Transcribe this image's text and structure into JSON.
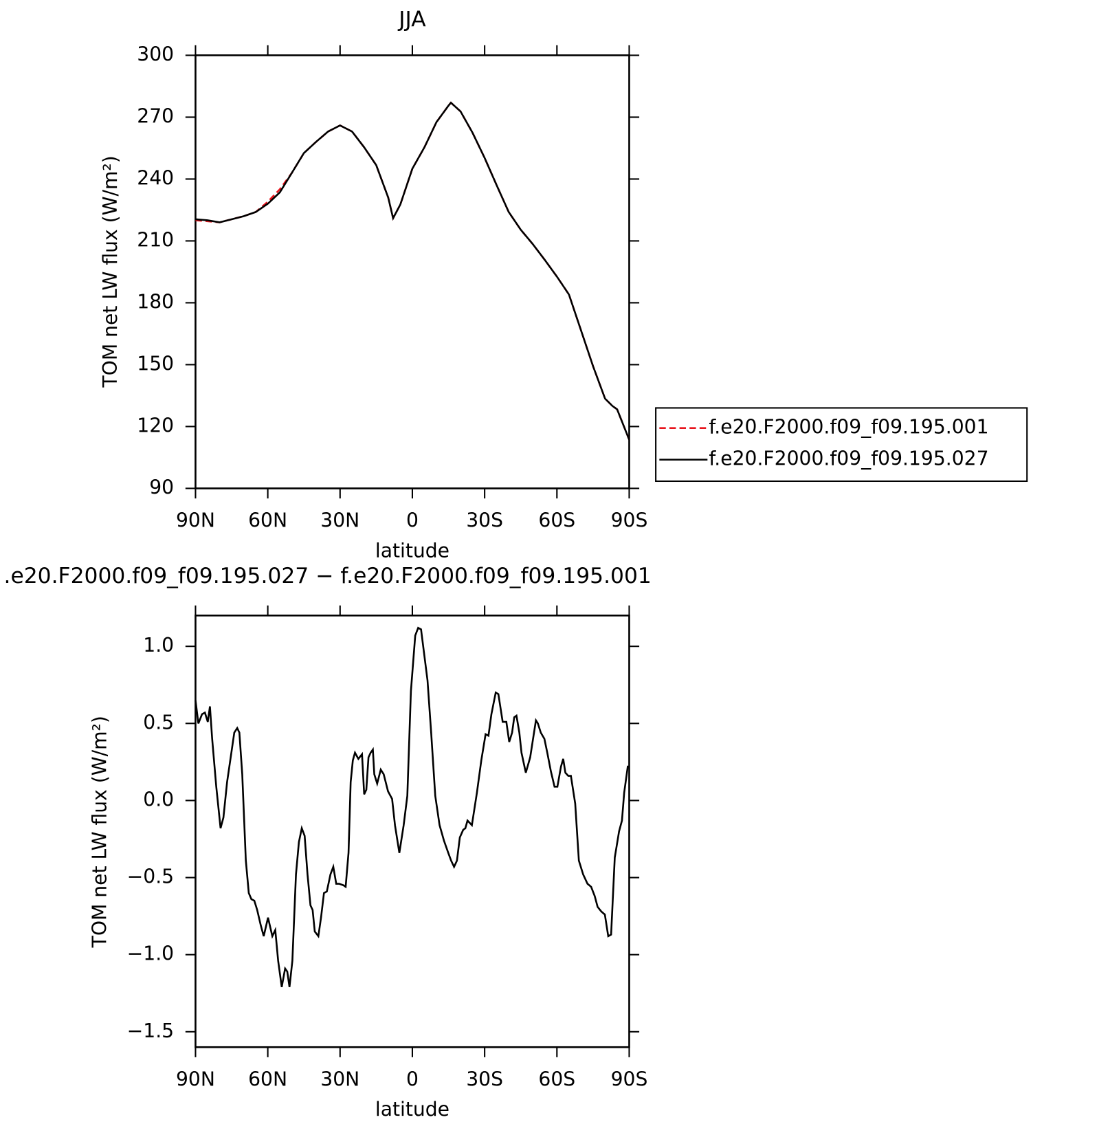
{
  "chart_data": [
    {
      "type": "line",
      "title": "JJA",
      "x_label": "latitude",
      "y_label": "TOM net LW flux (W/m²)",
      "x": [
        90,
        85,
        80,
        75,
        70,
        65,
        60,
        55,
        50,
        45,
        40,
        35,
        30,
        25,
        20,
        15,
        10,
        8,
        5,
        0,
        -5,
        -10,
        -15,
        -16,
        -20,
        -25,
        -30,
        -35,
        -40,
        -45,
        -50,
        -55,
        -60,
        -65,
        -70,
        -75,
        -80,
        -83,
        -85,
        -90
      ],
      "series": [
        {
          "name": "f.e20.F2000.f09_f09.195.001",
          "color": "#e8141c",
          "dashed": true,
          "values": [
            220,
            219.5,
            219,
            220.5,
            222,
            224,
            229,
            235,
            243,
            252.6,
            258,
            263,
            266,
            263,
            255.4,
            246.7,
            231,
            221,
            227.6,
            245,
            255.4,
            267.6,
            275.6,
            277,
            272.8,
            262.4,
            250.2,
            237,
            224,
            215.4,
            208.4,
            200.7,
            192.7,
            184,
            166.6,
            149.2,
            133.5,
            130,
            128.3,
            113.6
          ]
        },
        {
          "name": "f.e20.F2000.f09_f09.195.027",
          "color": "#000000",
          "dashed": false,
          "values": [
            220.5,
            220,
            219,
            220.5,
            222,
            224,
            228,
            233.5,
            243,
            252.6,
            258,
            263,
            266,
            263,
            255.4,
            246.7,
            231,
            221,
            227.6,
            245,
            255.4,
            267.6,
            275.6,
            277,
            272.8,
            262.4,
            250.2,
            237,
            224,
            215.4,
            208.4,
            200.7,
            192.7,
            184,
            166.6,
            149.2,
            133.5,
            130,
            128.3,
            113.6
          ]
        }
      ],
      "xlim": [
        90,
        -90
      ],
      "xticks": [
        {
          "value": 90,
          "label": "90N"
        },
        {
          "value": 60,
          "label": "60N"
        },
        {
          "value": 30,
          "label": "30N"
        },
        0,
        {
          "value": -30,
          "label": "30S"
        },
        {
          "value": -60,
          "label": "60S"
        },
        {
          "value": -90,
          "label": "90S"
        }
      ],
      "ylim": [
        90,
        300
      ],
      "yticks": [
        90,
        120,
        150,
        180,
        210,
        240,
        270,
        300
      ],
      "legend": "right"
    },
    {
      "type": "line",
      "title": ".e20.F2000.f09_f09.195.027 − f.e20.F2000.f09_f09.195.001",
      "x_label": "latitude",
      "y_label": "TOM net LW flux (W/m²)",
      "x": [
        90,
        88.8,
        87.3,
        86.1,
        84.9,
        84.0,
        83.1,
        81.4,
        79.6,
        78.4,
        76.9,
        75.4,
        73.9,
        72.7,
        71.8,
        70.6,
        69.1,
        67.9,
        66.8,
        65.6,
        64.4,
        62.9,
        61.7,
        59.9,
        58.1,
        56.9,
        55.7,
        54.2,
        52.8,
        51.9,
        51.0,
        49.8,
        48.3,
        47.1,
        45.9,
        44.7,
        43.5,
        42.3,
        41.4,
        40.5,
        39.0,
        37.9,
        36.7,
        35.5,
        34.0,
        32.8,
        31.6,
        30.4,
        28.6,
        27.7,
        26.5,
        25.6,
        24.7,
        23.8,
        22.4,
        20.9,
        20.0,
        19.1,
        18.2,
        17.3,
        16.4,
        15.8,
        14.6,
        13.1,
        11.9,
        10.1,
        8.4,
        7.2,
        5.4,
        3.6,
        2.1,
        0.6,
        -1.2,
        -2.4,
        -3.6,
        -4.5,
        -6.3,
        -7.8,
        -9.5,
        -11.3,
        -13.1,
        -14.9,
        -16.1,
        -17.3,
        -18.5,
        -19.7,
        -21.1,
        -22.0,
        -22.9,
        -24.7,
        -26.8,
        -28.6,
        -30.4,
        -31.6,
        -32.8,
        -34.6,
        -35.7,
        -37.5,
        -39.0,
        -40.2,
        -41.4,
        -42.3,
        -43.2,
        -44.4,
        -45.3,
        -47.1,
        -48.9,
        -50.1,
        -51.3,
        -52.1,
        -53.3,
        -54.8,
        -56.0,
        -57.5,
        -59.0,
        -60.2,
        -61.7,
        -62.6,
        -63.5,
        -64.7,
        -65.8,
        -67.6,
        -69.1,
        -70.9,
        -72.7,
        -74.2,
        -75.7,
        -76.9,
        -78.4,
        -79.9,
        -81.3,
        -82.5,
        -84.0,
        -85.8,
        -87.0,
        -87.9,
        -89.4,
        -90
      ],
      "values": [
        0.65,
        0.5,
        0.56,
        0.57,
        0.51,
        0.61,
        0.4,
        0.09,
        -0.18,
        -0.11,
        0.12,
        0.28,
        0.44,
        0.47,
        0.44,
        0.17,
        -0.39,
        -0.6,
        -0.64,
        -0.65,
        -0.71,
        -0.81,
        -0.88,
        -0.76,
        -0.88,
        -0.84,
        -1.04,
        -1.21,
        -1.09,
        -1.11,
        -1.21,
        -1.04,
        -0.48,
        -0.27,
        -0.18,
        -0.23,
        -0.48,
        -0.68,
        -0.71,
        -0.85,
        -0.88,
        -0.76,
        -0.6,
        -0.59,
        -0.48,
        -0.43,
        -0.54,
        -0.54,
        -0.55,
        -0.56,
        -0.34,
        0.12,
        0.26,
        0.31,
        0.27,
        0.3,
        0.04,
        0.07,
        0.28,
        0.31,
        0.33,
        0.17,
        0.11,
        0.2,
        0.17,
        0.06,
        0.01,
        -0.16,
        -0.34,
        -0.16,
        0.03,
        0.71,
        1.07,
        1.12,
        1.11,
        1.0,
        0.78,
        0.44,
        0.03,
        -0.16,
        -0.26,
        -0.34,
        -0.39,
        -0.43,
        -0.39,
        -0.24,
        -0.19,
        -0.18,
        -0.13,
        -0.16,
        0.05,
        0.26,
        0.43,
        0.42,
        0.56,
        0.7,
        0.69,
        0.51,
        0.51,
        0.38,
        0.44,
        0.54,
        0.55,
        0.44,
        0.31,
        0.18,
        0.28,
        0.4,
        0.52,
        0.5,
        0.44,
        0.4,
        0.31,
        0.19,
        0.09,
        0.09,
        0.22,
        0.27,
        0.18,
        0.16,
        0.16,
        -0.02,
        -0.39,
        -0.48,
        -0.54,
        -0.56,
        -0.62,
        -0.69,
        -0.72,
        -0.74,
        -0.88,
        -0.87,
        -0.37,
        -0.2,
        -0.13,
        0.05,
        0.22,
        0.22
      ],
      "color": "#000000",
      "xlim": [
        90,
        -90
      ],
      "xticks": [
        {
          "value": 90,
          "label": "90N"
        },
        {
          "value": 60,
          "label": "60N"
        },
        {
          "value": 30,
          "label": "30N"
        },
        0,
        {
          "value": -30,
          "label": "30S"
        },
        {
          "value": -60,
          "label": "60S"
        },
        {
          "value": -90,
          "label": "90S"
        }
      ],
      "ylim": [
        -1.6,
        1.2
      ],
      "yticks": [
        {
          "value": -1.5,
          "label": "−1.5"
        },
        {
          "value": -1,
          "label": "−1.0"
        },
        {
          "value": -0.5,
          "label": "−0.5"
        },
        {
          "value": 0,
          "label": "0.0"
        },
        0.5,
        {
          "value": 1,
          "label": "1.0"
        }
      ]
    }
  ]
}
